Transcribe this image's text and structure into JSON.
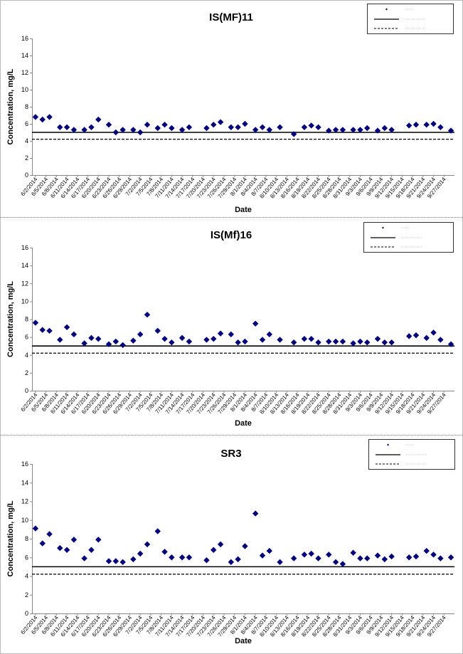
{
  "chart_data": [
    {
      "type": "scatter",
      "title": "IS(MF)11",
      "xlabel": "Date",
      "ylabel": "Concentration, mg/L",
      "ylim": [
        0,
        16
      ],
      "yticks": [
        0,
        2,
        4,
        6,
        8,
        10,
        12,
        14,
        16
      ],
      "xlim": [
        "2014-06-01",
        "2014-09-30"
      ],
      "x_tick_labels": [
        "6/2/2014",
        "6/5/2014",
        "6/8/2014",
        "6/11/2014",
        "6/14/2014",
        "6/17/2014",
        "6/20/2014",
        "6/23/2014",
        "6/26/2014",
        "6/29/2014",
        "7/2/2014",
        "7/5/2014",
        "7/8/2014",
        "7/11/2014",
        "7/14/2014",
        "7/17/2014",
        "7/20/2014",
        "7/23/2014",
        "7/26/2014",
        "7/29/2014",
        "8/1/2014",
        "8/4/2014",
        "8/7/2014",
        "8/10/2014",
        "8/13/2014",
        "8/16/2014",
        "8/19/2014",
        "8/22/2014",
        "8/25/2014",
        "8/28/2014",
        "8/31/2014",
        "9/3/2014",
        "9/6/2014",
        "9/9/2014",
        "9/12/2014",
        "9/15/2014",
        "9/18/2014",
        "9/21/2014",
        "9/24/2014",
        "9/27/2014"
      ],
      "grid": false,
      "legend": "top-right",
      "series": [
        {
          "marker": "diamond",
          "color": "#00008B",
          "x": [
            "2014-06-02",
            "2014-06-04",
            "2014-06-06",
            "2014-06-09",
            "2014-06-11",
            "2014-06-13",
            "2014-06-16",
            "2014-06-18",
            "2014-06-20",
            "2014-06-23",
            "2014-06-25",
            "2014-06-27",
            "2014-06-30",
            "2014-07-02",
            "2014-07-04",
            "2014-07-07",
            "2014-07-09",
            "2014-07-11",
            "2014-07-14",
            "2014-07-16",
            "2014-07-21",
            "2014-07-23",
            "2014-07-25",
            "2014-07-28",
            "2014-07-30",
            "2014-08-01",
            "2014-08-04",
            "2014-08-06",
            "2014-08-08",
            "2014-08-11",
            "2014-08-15",
            "2014-08-18",
            "2014-08-20",
            "2014-08-22",
            "2014-08-25",
            "2014-08-27",
            "2014-08-29",
            "2014-09-01",
            "2014-09-03",
            "2014-09-05",
            "2014-09-08",
            "2014-09-10",
            "2014-09-12",
            "2014-09-17",
            "2014-09-19",
            "2014-09-22",
            "2014-09-24",
            "2014-09-26",
            "2014-09-29"
          ],
          "y": [
            6.8,
            6.5,
            6.8,
            5.6,
            5.6,
            5.3,
            5.3,
            5.6,
            6.5,
            5.9,
            5.0,
            5.3,
            5.3,
            5.0,
            5.9,
            5.5,
            5.9,
            5.5,
            5.3,
            5.6,
            5.5,
            5.9,
            6.2,
            5.6,
            5.6,
            6.0,
            5.3,
            5.6,
            5.3,
            5.6,
            4.8,
            5.6,
            5.8,
            5.6,
            5.2,
            5.3,
            5.3,
            5.3,
            5.3,
            5.5,
            5.2,
            5.5,
            5.3,
            5.8,
            5.9,
            5.9,
            6.0,
            5.6,
            5.2
          ]
        },
        {
          "line": "solid",
          "color": "#000000",
          "y_value": 5.0
        },
        {
          "line": "dashed",
          "color": "#000000",
          "y_value": 4.2
        }
      ]
    },
    {
      "type": "scatter",
      "title": "IS(Mf)16",
      "xlabel": "Date",
      "ylabel": "Concentration, mg/L",
      "ylim": [
        0,
        16
      ],
      "yticks": [
        0,
        2,
        4,
        6,
        8,
        10,
        12,
        14,
        16
      ],
      "xlim": [
        "2014-06-01",
        "2014-09-30"
      ],
      "x_tick_labels": [
        "6/2/2014",
        "6/5/2014",
        "6/8/2014",
        "6/11/2014",
        "6/14/2014",
        "6/17/2014",
        "6/20/2014",
        "6/23/2014",
        "6/26/2014",
        "6/29/2014",
        "7/2/2014",
        "7/5/2014",
        "7/8/2014",
        "7/11/2014",
        "7/14/2014",
        "7/17/2014",
        "7/20/2014",
        "7/23/2014",
        "7/26/2014",
        "7/29/2014",
        "8/1/2014",
        "8/4/2014",
        "8/7/2014",
        "8/10/2014",
        "8/13/2014",
        "8/16/2014",
        "8/19/2014",
        "8/22/2014",
        "8/25/2014",
        "8/28/2014",
        "8/31/2014",
        "9/3/2014",
        "9/6/2014",
        "9/9/2014",
        "9/12/2014",
        "9/15/2014",
        "9/18/2014",
        "9/21/2014",
        "9/24/2014",
        "9/27/2014"
      ],
      "grid": false,
      "legend": "top-right",
      "series": [
        {
          "marker": "diamond",
          "color": "#00008B",
          "x": [
            "2014-06-02",
            "2014-06-04",
            "2014-06-06",
            "2014-06-09",
            "2014-06-11",
            "2014-06-13",
            "2014-06-16",
            "2014-06-18",
            "2014-06-20",
            "2014-06-23",
            "2014-06-25",
            "2014-06-27",
            "2014-06-30",
            "2014-07-02",
            "2014-07-04",
            "2014-07-07",
            "2014-07-09",
            "2014-07-11",
            "2014-07-14",
            "2014-07-16",
            "2014-07-21",
            "2014-07-23",
            "2014-07-25",
            "2014-07-28",
            "2014-07-30",
            "2014-08-01",
            "2014-08-04",
            "2014-08-06",
            "2014-08-08",
            "2014-08-11",
            "2014-08-15",
            "2014-08-18",
            "2014-08-20",
            "2014-08-22",
            "2014-08-25",
            "2014-08-27",
            "2014-08-29",
            "2014-09-01",
            "2014-09-03",
            "2014-09-05",
            "2014-09-08",
            "2014-09-10",
            "2014-09-12",
            "2014-09-17",
            "2014-09-19",
            "2014-09-22",
            "2014-09-24",
            "2014-09-26",
            "2014-09-29"
          ],
          "y": [
            7.6,
            6.8,
            6.7,
            5.7,
            7.1,
            6.3,
            5.3,
            5.9,
            5.8,
            5.2,
            5.5,
            5.1,
            5.6,
            6.3,
            8.5,
            6.7,
            5.8,
            5.4,
            5.9,
            5.5,
            5.7,
            5.8,
            6.4,
            6.3,
            5.4,
            5.5,
            7.5,
            5.7,
            6.3,
            5.7,
            5.4,
            5.8,
            5.8,
            5.4,
            5.5,
            5.5,
            5.5,
            5.3,
            5.5,
            5.4,
            5.8,
            5.4,
            5.4,
            6.1,
            6.2,
            5.9,
            6.5,
            5.7,
            5.2
          ]
        },
        {
          "line": "solid",
          "color": "#000000",
          "y_value": 5.0
        },
        {
          "line": "dashed",
          "color": "#000000",
          "y_value": 4.2
        }
      ]
    },
    {
      "type": "scatter",
      "title": "SR3",
      "xlabel": "Date",
      "ylabel": "Concentration, mg/L",
      "ylim": [
        0,
        16
      ],
      "yticks": [
        0,
        2,
        4,
        6,
        8,
        10,
        12,
        14,
        16
      ],
      "xlim": [
        "2014-06-01",
        "2014-09-30"
      ],
      "x_tick_labels": [
        "6/2/2014",
        "6/5/2014",
        "6/8/2014",
        "6/11/2014",
        "6/14/2014",
        "6/17/2014",
        "6/20/2014",
        "6/23/2014",
        "6/26/2014",
        "6/29/2014",
        "7/2/2014",
        "7/5/2014",
        "7/8/2014",
        "7/11/2014",
        "7/14/2014",
        "7/17/2014",
        "7/20/2014",
        "7/23/2014",
        "7/26/2014",
        "7/29/2014",
        "8/1/2014",
        "8/4/2014",
        "8/7/2014",
        "8/10/2014",
        "8/13/2014",
        "8/16/2014",
        "8/19/2014",
        "8/22/2014",
        "8/25/2014",
        "8/28/2014",
        "8/31/2014",
        "9/3/2014",
        "9/6/2014",
        "9/9/2014",
        "9/12/2014",
        "9/15/2014",
        "9/18/2014",
        "9/21/2014",
        "9/24/2014",
        "9/27/2014"
      ],
      "grid": false,
      "legend": "top-right",
      "series": [
        {
          "marker": "diamond",
          "color": "#00008B",
          "x": [
            "2014-06-02",
            "2014-06-04",
            "2014-06-06",
            "2014-06-09",
            "2014-06-11",
            "2014-06-13",
            "2014-06-16",
            "2014-06-18",
            "2014-06-20",
            "2014-06-23",
            "2014-06-25",
            "2014-06-27",
            "2014-06-30",
            "2014-07-02",
            "2014-07-04",
            "2014-07-07",
            "2014-07-09",
            "2014-07-11",
            "2014-07-14",
            "2014-07-16",
            "2014-07-21",
            "2014-07-23",
            "2014-07-25",
            "2014-07-28",
            "2014-07-30",
            "2014-08-01",
            "2014-08-04",
            "2014-08-06",
            "2014-08-08",
            "2014-08-11",
            "2014-08-15",
            "2014-08-18",
            "2014-08-20",
            "2014-08-22",
            "2014-08-25",
            "2014-08-27",
            "2014-08-29",
            "2014-09-01",
            "2014-09-03",
            "2014-09-05",
            "2014-09-08",
            "2014-09-10",
            "2014-09-12",
            "2014-09-17",
            "2014-09-19",
            "2014-09-22",
            "2014-09-24",
            "2014-09-26",
            "2014-09-29"
          ],
          "y": [
            9.1,
            7.5,
            8.5,
            7.0,
            6.8,
            7.9,
            5.9,
            6.8,
            7.9,
            5.6,
            5.6,
            5.5,
            5.8,
            6.4,
            7.4,
            8.8,
            6.6,
            6.0,
            6.0,
            6.0,
            5.7,
            6.8,
            7.4,
            5.5,
            5.8,
            7.2,
            10.7,
            6.2,
            6.7,
            5.5,
            5.9,
            6.3,
            6.4,
            5.9,
            6.3,
            5.5,
            5.3,
            6.5,
            5.9,
            5.9,
            6.2,
            5.8,
            6.1,
            6.0,
            6.1,
            6.7,
            6.3,
            5.9,
            6.0
          ]
        },
        {
          "line": "solid",
          "color": "#000000",
          "y_value": 5.0
        },
        {
          "line": "dashed",
          "color": "#000000",
          "y_value": 4.2
        }
      ]
    }
  ]
}
